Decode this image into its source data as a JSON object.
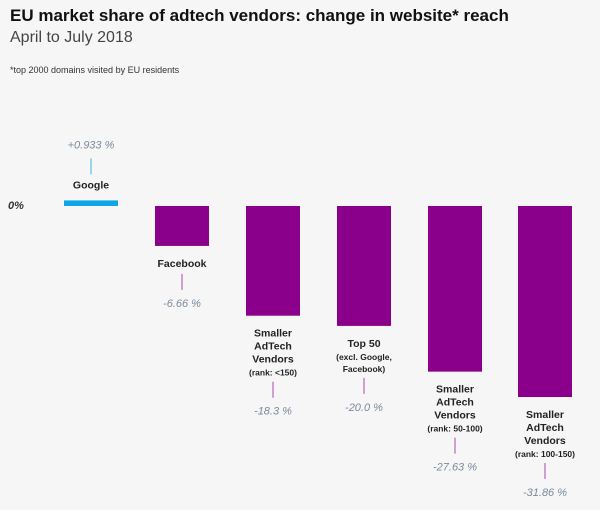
{
  "title": "EU market share of adtech vendors: change in website* reach",
  "subtitle": "April to July 2018",
  "footnote": "*top 2000 domains visited by EU residents",
  "zero_label": "0%",
  "colors": {
    "positive": "#0ea5e6",
    "negative": "#8b008b",
    "positive_leader": "#34b4ea",
    "negative_leader": "#b048b0",
    "value_text": "#7b8a9b"
  },
  "chart_data": {
    "type": "bar",
    "categories": [
      "Google",
      "Facebook",
      "Smaller AdTech Vendors (rank: <150)",
      "Top 50 (excl. Google, Facebook)",
      "Smaller AdTech Vendors (rank: 50-100)",
      "Smaller AdTech Vendors (rank: 100-150)"
    ],
    "category_lines": [
      [
        [
          "Google",
          "cat"
        ]
      ],
      [
        [
          "Facebook",
          "cat"
        ]
      ],
      [
        [
          "Smaller",
          "cat"
        ],
        [
          "AdTech",
          "cat"
        ],
        [
          "Vendors",
          "cat"
        ],
        [
          "(rank: <150)",
          "rank"
        ]
      ],
      [
        [
          "Top 50",
          "cat"
        ],
        [
          "(excl. Google,",
          "rank"
        ],
        [
          "Facebook)",
          "rank"
        ]
      ],
      [
        [
          "Smaller",
          "cat"
        ],
        [
          "AdTech",
          "cat"
        ],
        [
          "Vendors",
          "cat"
        ],
        [
          "(rank: 50-100)",
          "rank"
        ]
      ],
      [
        [
          "Smaller",
          "cat"
        ],
        [
          "AdTech",
          "cat"
        ],
        [
          "Vendors",
          "cat"
        ],
        [
          "(rank: 100-150)",
          "rank"
        ]
      ]
    ],
    "values": [
      0.933,
      -6.66,
      -18.3,
      -20.0,
      -27.63,
      -31.86
    ],
    "value_labels": [
      "+0.933 %",
      "-6.66 %",
      "-18.3 %",
      "-20.0 %",
      "-27.63 %",
      "-31.86 %"
    ],
    "ylim": [
      -31.86,
      0.933
    ],
    "xlabel": "",
    "ylabel": ""
  }
}
